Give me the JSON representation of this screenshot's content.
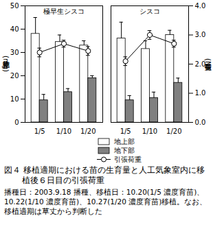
{
  "chart_data": {
    "type": "bar",
    "title": "図４ 移植適期における苗の生育量と人工気象室内に移植後６日目の引張荷重",
    "subtitle": "播種日：2003.9.18 播種、移植日：10.20(1/5 濃度育苗)、10.22(1/10 濃度育苗)、10.27(1/20 濃度育苗)移植。なお、移植適期は草丈から判断した",
    "ylabel": "乾物重(mg)",
    "y2label": "引張荷重(N)",
    "categories": [
      "1/5",
      "1/10",
      "1/20"
    ],
    "ylim": [
      0,
      50
    ],
    "yticks": [
      0,
      10,
      20,
      30,
      40,
      50
    ],
    "y2lim": [
      0,
      4
    ],
    "y2ticks": [
      0,
      1,
      2,
      3,
      4
    ],
    "legend": "bottom",
    "panels": [
      {
        "title": "極早生シスコ",
        "series": [
          {
            "name": "地上部",
            "color": "#ffffff",
            "values": [
              38,
              34.5,
              33
            ],
            "errors": [
              7,
              3,
              2
            ]
          },
          {
            "name": "地下部",
            "color": "#808080",
            "values": [
              9.5,
              13,
              19
            ],
            "errors": [
              2.5,
              1.5,
              1
            ]
          },
          {
            "name": "引張荷重",
            "type": "line",
            "axis": "y2",
            "color": "#000000",
            "marker": "circle",
            "values": [
              2.4,
              2.7,
              2.45
            ],
            "errors": [
              0.15,
              0.12,
              0.15
            ]
          }
        ]
      },
      {
        "title": "シスコ",
        "series": [
          {
            "name": "地上部",
            "color": "#ffffff",
            "values": [
              36,
              31.5,
              37.5
            ],
            "errors": [
              7,
              3.5,
              2
            ]
          },
          {
            "name": "地下部",
            "color": "#808080",
            "values": [
              9.5,
              10.5,
              17
            ],
            "errors": [
              2,
              2.5,
              2
            ]
          },
          {
            "name": "引張荷重",
            "type": "line",
            "axis": "y2",
            "color": "#000000",
            "marker": "circle",
            "values": [
              2.1,
              3.0,
              2.7
            ],
            "errors": [
              0.15,
              0.15,
              0.12
            ]
          }
        ]
      }
    ]
  }
}
